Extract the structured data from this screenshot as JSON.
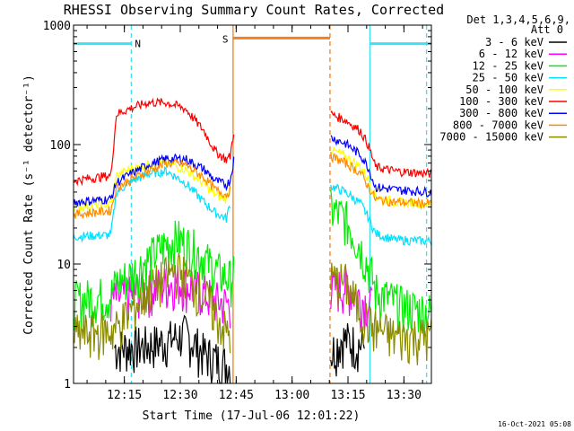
{
  "chart_data": {
    "type": "line",
    "title": "RHESSI Observing Summary Count Rates, Corrected",
    "xlabel": "Start Time (17-Jul-06 12:01:22)",
    "ylabel": "Corrected Count Rate (s⁻¹ detector⁻¹)",
    "yscale": "log",
    "ylim": [
      1,
      1000
    ],
    "xlim_minutes": [
      0,
      96
    ],
    "x_ticks": [
      {
        "label": "12:15",
        "minute": 13.63
      },
      {
        "label": "12:30",
        "minute": 28.63
      },
      {
        "label": "12:45",
        "minute": 43.63
      },
      {
        "label": "13:00",
        "minute": 58.63
      },
      {
        "label": "13:15",
        "minute": 73.63
      },
      {
        "label": "13:30",
        "minute": 88.63
      }
    ],
    "y_ticks": [
      {
        "label": "1000",
        "value": 1000
      },
      {
        "label": "100",
        "value": 100
      },
      {
        "label": "10",
        "value": 10
      },
      {
        "label": "1",
        "value": 1
      }
    ],
    "legend_header": [
      "Det 1,3,4,5,6,9,",
      "Att 0"
    ],
    "legend_position": "top-right",
    "annotations": {
      "night_marker": "N",
      "saa_marker": "S",
      "timestamp": "16-Oct-2021 05:08"
    },
    "state_bars": [
      {
        "name": "night",
        "color": "#40e0f0",
        "value": 700,
        "segments": [
          [
            0,
            15.5
          ],
          [
            79.5,
            96
          ]
        ]
      },
      {
        "name": "saa",
        "color": "#f08020",
        "value": 780,
        "segments": [
          [
            42.8,
            68.8
          ]
        ]
      }
    ],
    "state_lines": [
      {
        "color": "#40e0f0",
        "minute": 15.5,
        "dashed": true
      },
      {
        "color": "#f08020",
        "minute": 42.8,
        "dashed": false
      },
      {
        "color": "#f08020",
        "minute": 68.8,
        "dashed": true
      },
      {
        "color": "#40e0f0",
        "minute": 79.5,
        "dashed": false
      },
      {
        "color": "#40e0f0",
        "minute": 94.7,
        "dashed": true
      }
    ],
    "series": [
      {
        "name": "3 - 6 keV",
        "color": "#000000",
        "seg1": [
          [
            11,
            2
          ],
          [
            20,
            2.1
          ],
          [
            25,
            2.3
          ],
          [
            30,
            2.6
          ],
          [
            35,
            1.8
          ],
          [
            40,
            1.5
          ],
          [
            42,
            1.4
          ]
        ],
        "seg2": [
          [
            69,
            1.8
          ],
          [
            72,
            2.4
          ],
          [
            75,
            2.2
          ],
          [
            78,
            2.1
          ]
        ]
      },
      {
        "name": "6 - 12 keV",
        "color": "#ff00ff",
        "seg1": [
          [
            10,
            5
          ],
          [
            15,
            5.5
          ],
          [
            20,
            6.2
          ],
          [
            25,
            6.8
          ],
          [
            28,
            7.2
          ],
          [
            33,
            6.2
          ],
          [
            38,
            5
          ],
          [
            42,
            4.6
          ]
        ],
        "seg2": [
          [
            69,
            6.2
          ],
          [
            73,
            6.5
          ],
          [
            77,
            5.2
          ],
          [
            80,
            4.5
          ]
        ]
      },
      {
        "name": "12 - 25 keV",
        "color": "#00ee00",
        "seg1": [
          [
            0,
            5
          ],
          [
            10,
            5.5
          ],
          [
            11.5,
            7
          ],
          [
            15,
            8
          ],
          [
            20,
            11
          ],
          [
            25,
            15
          ],
          [
            28,
            16.5
          ],
          [
            33,
            13
          ],
          [
            38,
            9
          ],
          [
            42,
            7.5
          ],
          [
            43,
            9
          ]
        ],
        "seg2": [
          [
            69,
            29
          ],
          [
            73,
            24
          ],
          [
            77,
            14
          ],
          [
            80,
            8
          ],
          [
            81,
            6
          ],
          [
            88,
            4.5
          ],
          [
            96,
            4
          ]
        ]
      },
      {
        "name": "25 - 50 keV",
        "color": "#00e0ff",
        "seg1": [
          [
            0,
            17
          ],
          [
            10,
            17.5
          ],
          [
            11.5,
            40
          ],
          [
            15,
            48
          ],
          [
            20,
            57
          ],
          [
            25,
            60
          ],
          [
            30,
            48
          ],
          [
            35,
            33
          ],
          [
            38,
            27
          ],
          [
            41,
            24
          ],
          [
            42,
            32
          ]
        ],
        "seg2": [
          [
            69,
            45
          ],
          [
            73,
            40
          ],
          [
            77,
            32
          ],
          [
            79,
            25
          ],
          [
            81,
            18
          ],
          [
            86,
            16
          ],
          [
            96,
            15.5
          ]
        ]
      },
      {
        "name": "50 - 100 keV",
        "color": "#ffff00",
        "seg1": [
          [
            0,
            30
          ],
          [
            10,
            32
          ],
          [
            11.5,
            55
          ],
          [
            15,
            62
          ],
          [
            20,
            68
          ],
          [
            25,
            70
          ],
          [
            30,
            62
          ],
          [
            35,
            47
          ],
          [
            38,
            38
          ],
          [
            41,
            35
          ],
          [
            42,
            44
          ]
        ],
        "seg2": [
          [
            69,
            90
          ],
          [
            73,
            80
          ],
          [
            77,
            65
          ],
          [
            79,
            52
          ],
          [
            81,
            37
          ],
          [
            86,
            33
          ],
          [
            96,
            32
          ]
        ]
      },
      {
        "name": "100 - 300 keV",
        "color": "#ff0000",
        "seg1": [
          [
            0,
            50
          ],
          [
            10,
            55
          ],
          [
            11.5,
            180
          ],
          [
            15,
            200
          ],
          [
            20,
            225
          ],
          [
            25,
            225
          ],
          [
            30,
            200
          ],
          [
            35,
            130
          ],
          [
            38,
            88
          ],
          [
            41,
            75
          ],
          [
            42,
            80
          ],
          [
            43,
            130
          ]
        ],
        "seg2": [
          [
            69,
            180
          ],
          [
            73,
            160
          ],
          [
            77,
            130
          ],
          [
            79,
            100
          ],
          [
            81,
            65
          ],
          [
            86,
            60
          ],
          [
            96,
            57
          ]
        ]
      },
      {
        "name": "300 - 800 keV",
        "color": "#0000ff",
        "seg1": [
          [
            0,
            33
          ],
          [
            10,
            35
          ],
          [
            11.5,
            48
          ],
          [
            15,
            56
          ],
          [
            20,
            68
          ],
          [
            25,
            76
          ],
          [
            30,
            76
          ],
          [
            35,
            62
          ],
          [
            38,
            50
          ],
          [
            41,
            46
          ],
          [
            42,
            50
          ],
          [
            43,
            75
          ]
        ],
        "seg2": [
          [
            69,
            115
          ],
          [
            73,
            102
          ],
          [
            77,
            82
          ],
          [
            79,
            65
          ],
          [
            81,
            44
          ],
          [
            86,
            42
          ],
          [
            96,
            40
          ]
        ]
      },
      {
        "name": "800 - 7000 keV",
        "color": "#ff8c00",
        "seg1": [
          [
            0,
            26
          ],
          [
            10,
            28
          ],
          [
            11.5,
            44
          ],
          [
            15,
            50
          ],
          [
            20,
            60
          ],
          [
            25,
            70
          ],
          [
            30,
            68
          ],
          [
            35,
            53
          ],
          [
            38,
            42
          ],
          [
            41,
            38
          ],
          [
            42,
            42
          ]
        ],
        "seg2": [
          [
            69,
            80
          ],
          [
            73,
            70
          ],
          [
            77,
            58
          ],
          [
            79,
            45
          ],
          [
            81,
            35
          ],
          [
            86,
            33
          ],
          [
            96,
            32
          ]
        ]
      },
      {
        "name": "7000 - 15000 keV",
        "color": "#8b8b00",
        "seg1": [
          [
            0,
            2.6
          ],
          [
            10,
            2.8
          ],
          [
            12,
            3
          ],
          [
            15,
            4
          ],
          [
            20,
            6
          ],
          [
            25,
            8
          ],
          [
            28,
            9
          ],
          [
            32,
            7
          ],
          [
            36,
            5
          ],
          [
            40,
            3
          ],
          [
            42,
            2.5
          ]
        ],
        "seg2": [
          [
            69,
            7.5
          ],
          [
            73,
            7
          ],
          [
            77,
            4
          ],
          [
            80,
            3
          ],
          [
            86,
            2.5
          ],
          [
            96,
            2.5
          ]
        ]
      }
    ]
  }
}
